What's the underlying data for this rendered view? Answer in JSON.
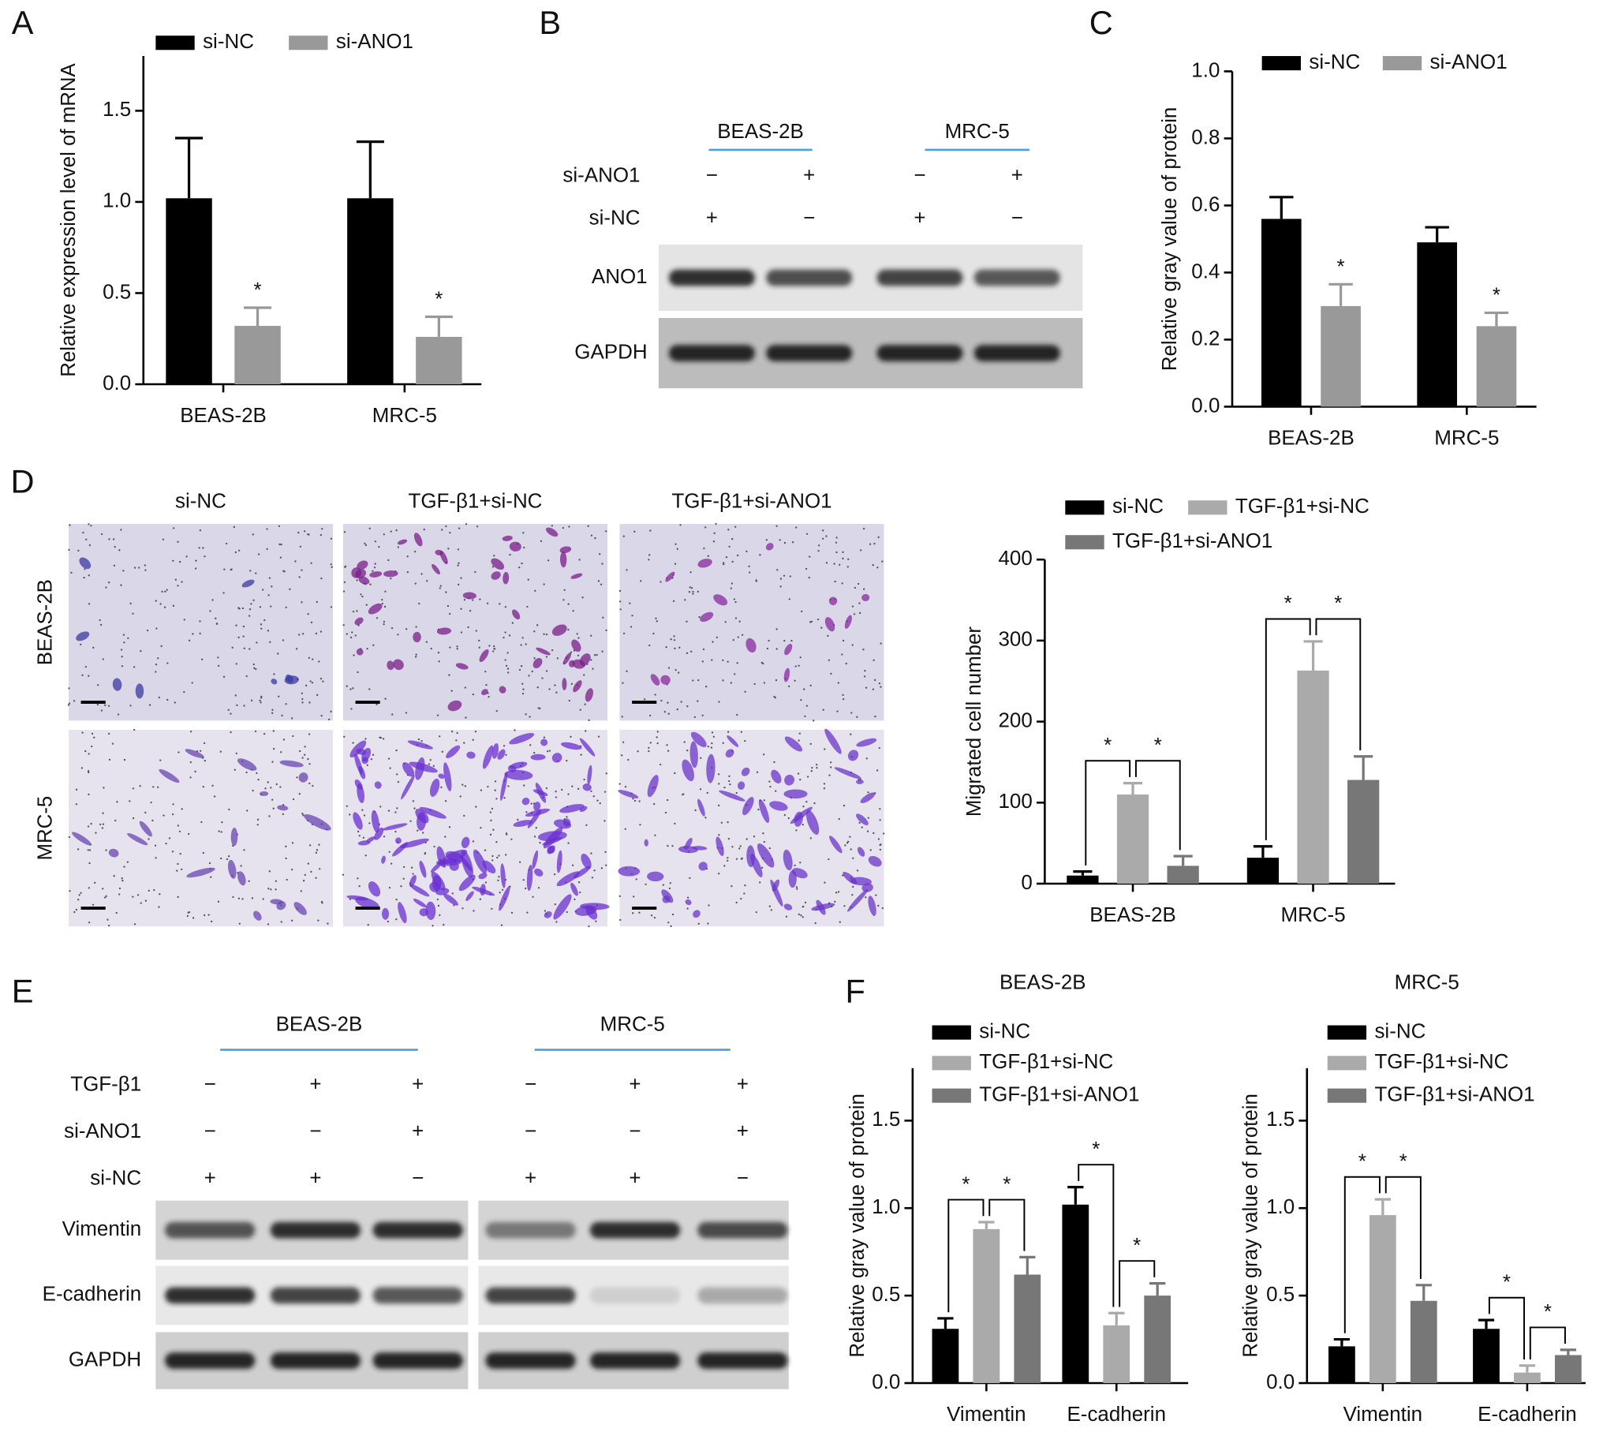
{
  "panel_labels": [
    "A",
    "B",
    "C",
    "D",
    "E",
    "F"
  ],
  "chart_data": [
    {
      "type": "bar",
      "ylabel": "Relative expression level of mRNA",
      "categories": [
        "BEAS-2B",
        "MRC-5"
      ],
      "ylim": [
        0,
        1.8
      ],
      "yticks": [
        {
          "value": 0,
          "label": "0.0"
        },
        0.5,
        {
          "value": 1,
          "label": "1.0"
        },
        1.5
      ],
      "series": [
        {
          "name": "si-NC",
          "color": "#000000",
          "values": [
            1.02,
            1.02
          ],
          "errors": [
            0.33,
            0.31
          ]
        },
        {
          "name": "si-ANO1",
          "color": "#999999",
          "values": [
            0.32,
            0.26
          ],
          "errors": [
            0.1,
            0.11
          ],
          "significance": [
            "*",
            "*"
          ]
        }
      ]
    },
    {
      "type": "bar",
      "ylabel": "Relative gray value of protein",
      "categories": [
        "BEAS-2B",
        "MRC-5"
      ],
      "ylim": [
        0,
        1
      ],
      "yticks": [
        {
          "value": 0,
          "label": "0.0"
        },
        0.2,
        0.4,
        0.6,
        0.8,
        {
          "value": 1,
          "label": "1.0"
        }
      ],
      "series": [
        {
          "name": "si-NC",
          "color": "#000000",
          "values": [
            0.56,
            0.49
          ],
          "errors": [
            0.065,
            0.045
          ]
        },
        {
          "name": "si-ANO1",
          "color": "#999999",
          "values": [
            0.3,
            0.24
          ],
          "errors": [
            0.065,
            0.04
          ],
          "significance": [
            "*",
            "*"
          ]
        }
      ]
    },
    {
      "type": "bar",
      "ylabel": "Migrated cell number",
      "categories": [
        "BEAS-2B",
        "MRC-5"
      ],
      "ylim": [
        0,
        400
      ],
      "yticks": [
        0,
        100,
        200,
        300,
        400
      ],
      "series": [
        {
          "name": "si-NC",
          "color": "#000000",
          "values": [
            10,
            32
          ],
          "errors": [
            5,
            14
          ]
        },
        {
          "name": "TGF-β1+si-NC",
          "color": "#aaaaaa",
          "values": [
            110,
            263
          ],
          "errors": [
            14,
            36
          ]
        },
        {
          "name": "TGF-β1+si-ANO1",
          "color": "#777777",
          "values": [
            22,
            128
          ],
          "errors": [
            12,
            29
          ]
        }
      ],
      "comparisons": [
        {
          "category": 0,
          "series": [
            0,
            1
          ],
          "label": "*"
        },
        {
          "category": 0,
          "series": [
            1,
            2
          ],
          "label": "*"
        },
        {
          "category": 1,
          "series": [
            0,
            1
          ],
          "label": "*"
        },
        {
          "category": 1,
          "series": [
            1,
            2
          ],
          "label": "*"
        }
      ]
    },
    {
      "type": "bar",
      "title": "BEAS-2B",
      "ylabel": "Relative gray value of protein",
      "categories": [
        "Vimentin",
        "E-cadherin"
      ],
      "ylim": [
        0,
        1.8
      ],
      "yticks": [
        {
          "value": 0,
          "label": "0.0"
        },
        0.5,
        {
          "value": 1,
          "label": "1.0"
        },
        1.5
      ],
      "series": [
        {
          "name": "si-NC",
          "color": "#000000",
          "values": [
            0.31,
            1.02
          ],
          "errors": [
            0.06,
            0.1
          ]
        },
        {
          "name": "TGF-β1+si-NC",
          "color": "#aaaaaa",
          "values": [
            0.88,
            0.33
          ],
          "errors": [
            0.04,
            0.07
          ]
        },
        {
          "name": "TGF-β1+si-ANO1",
          "color": "#777777",
          "values": [
            0.62,
            0.5
          ],
          "errors": [
            0.1,
            0.07
          ]
        }
      ],
      "comparisons": [
        {
          "category": 0,
          "series": [
            0,
            1
          ],
          "label": "*"
        },
        {
          "category": 0,
          "series": [
            1,
            2
          ],
          "label": "*"
        },
        {
          "category": 1,
          "series": [
            0,
            1
          ],
          "label": "*"
        },
        {
          "category": 1,
          "series": [
            1,
            2
          ],
          "label": "*"
        }
      ]
    },
    {
      "type": "bar",
      "title": "MRC-5",
      "ylabel": "Relative gray value of protein",
      "categories": [
        "Vimentin",
        "E-cadherin"
      ],
      "ylim": [
        0,
        1.8
      ],
      "yticks": [
        {
          "value": 0,
          "label": "0.0"
        },
        0.5,
        {
          "value": 1,
          "label": "1.0"
        },
        1.5
      ],
      "series": [
        {
          "name": "si-NC",
          "color": "#000000",
          "values": [
            0.21,
            0.31
          ],
          "errors": [
            0.04,
            0.05
          ]
        },
        {
          "name": "TGF-β1+si-NC",
          "color": "#aaaaaa",
          "values": [
            0.96,
            0.06
          ],
          "errors": [
            0.09,
            0.04
          ]
        },
        {
          "name": "TGF-β1+si-ANO1",
          "color": "#777777",
          "values": [
            0.47,
            0.16
          ],
          "errors": [
            0.09,
            0.03
          ]
        }
      ],
      "comparisons": [
        {
          "category": 0,
          "series": [
            0,
            1
          ],
          "label": "*"
        },
        {
          "category": 0,
          "series": [
            1,
            2
          ],
          "label": "*"
        },
        {
          "category": 1,
          "series": [
            0,
            1
          ],
          "label": "*"
        },
        {
          "category": 1,
          "series": [
            1,
            2
          ],
          "label": "*"
        }
      ]
    }
  ],
  "blot_b": {
    "groups": [
      "BEAS-2B",
      "MRC-5"
    ],
    "conditions": [
      {
        "name": "si-ANO1",
        "signs": [
          "−",
          "+",
          "−",
          "+"
        ]
      },
      {
        "name": "si-NC",
        "signs": [
          "+",
          "−",
          "+",
          "−"
        ]
      }
    ],
    "bands": [
      "ANO1",
      "GAPDH"
    ]
  },
  "micrographs": {
    "columns": [
      "si-NC",
      "TGF-β1+si-NC",
      "TGF-β1+si-ANO1"
    ],
    "rows": [
      "BEAS-2B",
      "MRC-5"
    ]
  },
  "blot_e": {
    "groups": [
      "BEAS-2B",
      "MRC-5"
    ],
    "conditions": [
      {
        "name": "TGF-β1",
        "signs": [
          "−",
          "+",
          "+",
          "−",
          "+",
          "+"
        ]
      },
      {
        "name": "si-ANO1",
        "signs": [
          "−",
          "−",
          "+",
          "−",
          "−",
          "+"
        ]
      },
      {
        "name": "si-NC",
        "signs": [
          "+",
          "+",
          "−",
          "+",
          "+",
          "−"
        ]
      }
    ],
    "bands": [
      "Vimentin",
      "E-cadherin",
      "GAPDH"
    ]
  }
}
